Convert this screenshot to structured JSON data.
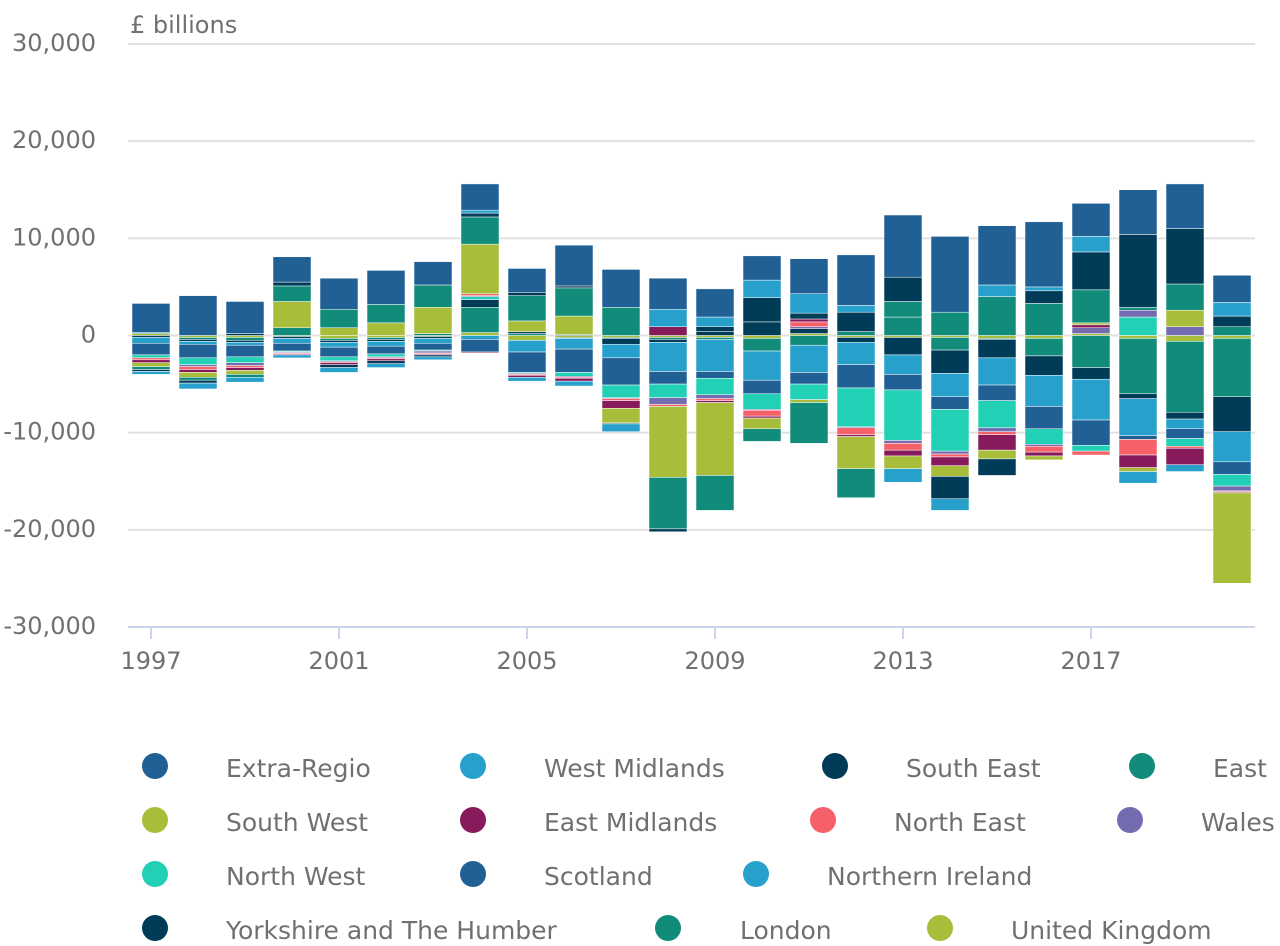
{
  "chart_data": {
    "type": "bar",
    "stacked": true,
    "title": "£ billions",
    "categories": [
      "1997",
      null,
      null,
      null,
      "2001",
      null,
      null,
      null,
      "2005",
      null,
      null,
      null,
      "2009",
      null,
      null,
      null,
      "2013",
      null,
      null,
      null,
      "2017",
      null,
      null,
      null
    ],
    "ylim": [
      -30000,
      30000
    ],
    "yticks": [
      {
        "value": -30000,
        "label": "-30,000"
      },
      {
        "value": -20000,
        "label": "-20,000"
      },
      {
        "value": -10000,
        "label": "-10,000"
      },
      0,
      {
        "value": 10000,
        "label": "10,000"
      },
      {
        "value": 20000,
        "label": "20,000"
      },
      {
        "value": 30000,
        "label": "30,000"
      }
    ],
    "grid": true,
    "series": [
      {
        "name": "Extra-Regio",
        "color": "#206095",
        "values": [
          3000,
          4100,
          3300,
          2600,
          3200,
          3500,
          2400,
          2700,
          2500,
          4200,
          3900,
          3200,
          2900,
          2500,
          3600,
          5200,
          6400,
          7800,
          6100,
          6700,
          3400,
          4600,
          4600,
          2800
        ]
      },
      {
        "name": "West Midlands",
        "color": "#27a0cc",
        "values": [
          -300,
          -600,
          -500,
          -300,
          -500,
          -400,
          -300,
          300,
          -400,
          -500,
          -800,
          1800,
          1000,
          1800,
          2000,
          700,
          -1400,
          -1200,
          1200,
          400,
          1600,
          -1200,
          -700,
          1400
        ]
      },
      {
        "name": "South East",
        "color": "#003c57",
        "values": [
          -200,
          -300,
          200,
          400,
          -300,
          -300,
          -200,
          400,
          300,
          200,
          -100,
          -300,
          500,
          2500,
          600,
          2000,
          2500,
          -2300,
          -1700,
          1300,
          3900,
          7500,
          5700,
          1100
        ]
      },
      {
        "name": "East",
        "color": "#118c7b",
        "values": [
          -300,
          -300,
          -300,
          1600,
          1900,
          1900,
          2300,
          2800,
          2600,
          2900,
          2900,
          -5300,
          -3600,
          -1300,
          -4200,
          -3000,
          1600,
          2400,
          4000,
          3300,
          3400,
          300,
          2700,
          900
        ]
      },
      {
        "name": "South West",
        "color": "#a8bd3a",
        "values": [
          -400,
          -500,
          -400,
          2700,
          800,
          1300,
          2700,
          5100,
          1100,
          1900,
          -1500,
          -7300,
          -7500,
          -1100,
          -300,
          -3300,
          -1300,
          -1100,
          -900,
          -400,
          200,
          -400,
          1700,
          -9300
        ]
      },
      {
        "name": "East Midlands",
        "color": "#871a5b",
        "values": [
          -300,
          -300,
          -300,
          -100,
          -200,
          -200,
          -100,
          -100,
          -200,
          -300,
          -800,
          900,
          -200,
          -200,
          300,
          -200,
          -600,
          -900,
          -1600,
          -400,
          300,
          -1300,
          -1700,
          -100
        ]
      },
      {
        "name": "North East",
        "color": "#f66068",
        "values": [
          -200,
          -300,
          -200,
          -100,
          -100,
          -100,
          -100,
          200,
          -100,
          -100,
          -200,
          -200,
          -200,
          -600,
          500,
          -700,
          -700,
          -300,
          -300,
          -600,
          -400,
          -1600,
          -200,
          -100
        ]
      },
      {
        "name": "Wales",
        "color": "#746cb1",
        "values": [
          0,
          -200,
          -300,
          -100,
          -100,
          -100,
          -200,
          100,
          -100,
          -100,
          -100,
          -700,
          -400,
          -100,
          200,
          -100,
          -300,
          -300,
          -400,
          -200,
          600,
          700,
          900,
          -500
        ]
      },
      {
        "name": "North West",
        "color": "#22d0b6",
        "values": [
          -300,
          -700,
          -600,
          -100,
          -400,
          -300,
          -100,
          300,
          -100,
          -400,
          -1300,
          -1400,
          -1700,
          -1600,
          -1600,
          -4000,
          -5200,
          -4300,
          -2800,
          -1600,
          -600,
          1900,
          -800,
          -1200
        ]
      },
      {
        "name": "Scotland",
        "color": "#206095",
        "values": [
          -1200,
          -1400,
          -1200,
          -800,
          -1000,
          -800,
          -700,
          -1300,
          -2100,
          -2400,
          -2800,
          -1300,
          -700,
          -1400,
          -1200,
          -2400,
          -1600,
          -1300,
          -1600,
          -2300,
          -2600,
          -400,
          -1000,
          -1300
        ]
      },
      {
        "name": "Northern Ireland",
        "color": "#27a0cc",
        "values": [
          -600,
          -300,
          -300,
          -500,
          -500,
          -500,
          -500,
          -400,
          -1200,
          -1100,
          -1400,
          -3000,
          -3300,
          -3000,
          -2800,
          -2300,
          -2000,
          -2400,
          -2800,
          -3200,
          -4200,
          -3800,
          -1000,
          -3100
        ]
      },
      {
        "name": "Yorkshire and The Humber",
        "color": "#003c57",
        "values": [
          -200,
          -200,
          -200,
          -200,
          -200,
          -200,
          -200,
          800,
          200,
          100,
          -600,
          -300,
          400,
          1400,
          500,
          -500,
          -1800,
          -2400,
          -1900,
          -2000,
          -1200,
          -500,
          -700,
          -3600
        ]
      },
      {
        "name": "London",
        "color": "#118c7b",
        "values": [
          100,
          -200,
          -300,
          800,
          -200,
          -200,
          200,
          2600,
          200,
          -100,
          -100,
          -200,
          -200,
          -1300,
          -1000,
          400,
          1900,
          -1300,
          -100,
          -1800,
          -3300,
          -5700,
          -7300,
          -6000
        ]
      },
      {
        "name": "United Kingdom",
        "color": "#a8bd3a",
        "values": [
          200,
          -200,
          -200,
          -100,
          -300,
          -200,
          -100,
          300,
          -500,
          -200,
          -200,
          -200,
          -200,
          -300,
          200,
          -200,
          -200,
          -200,
          -300,
          -300,
          200,
          -300,
          -600,
          -300
        ]
      }
    ]
  }
}
